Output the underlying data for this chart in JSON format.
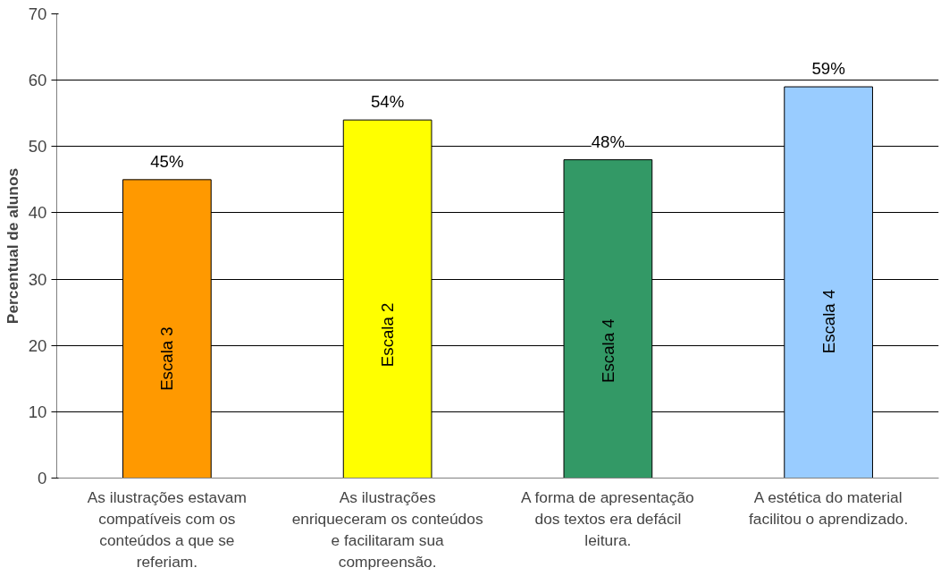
{
  "chart_data": {
    "type": "bar",
    "ylabel": "Percentual de alunos",
    "categories": [
      "As ilustrações estavam compatíveis com os conteúdos a que se referiam.",
      "As ilustrações enriqueceram os conteúdos e facilitaram sua compreensão.",
      "A forma de apresentação dos textos era defácil leitura.",
      "A estética do material facilitou o aprendizado."
    ],
    "values": [
      45,
      54,
      48,
      59
    ],
    "colors": [
      "#ff9900",
      "#ffff00",
      "#339966",
      "#99ccff"
    ],
    "value_labels": [
      "45%",
      "54%",
      "48%",
      "59%"
    ],
    "ylim": [
      0,
      70
    ],
    "yticks": [
      0,
      10,
      20,
      30,
      40,
      50,
      60,
      70
    ],
    "grid": "y",
    "annotations": [
      "Escala 3",
      "Escala 2",
      "Escala 4",
      "Escala 4"
    ]
  }
}
